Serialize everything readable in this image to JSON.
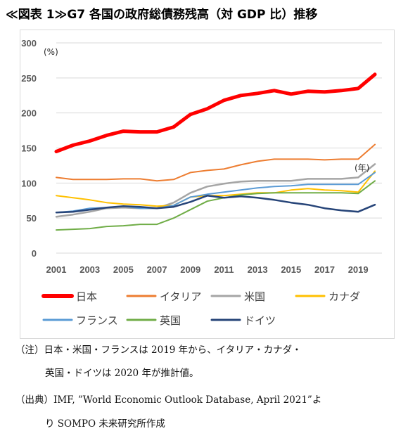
{
  "title": "≪図表 1≫G7 各国の政府総債務残高（対 GDP 比）推移",
  "chart_data": {
    "type": "line",
    "unit_label": "(%)",
    "x_unit_label": "(年)",
    "ylim": [
      0,
      300
    ],
    "yticks": [
      "0",
      "50",
      "100",
      "150",
      "200",
      "250",
      "300"
    ],
    "xtick_labels": [
      "2001",
      "2003",
      "2005",
      "2007",
      "2009",
      "2011",
      "2013",
      "2015",
      "2017",
      "2019"
    ],
    "x": [
      2001,
      2002,
      2003,
      2004,
      2005,
      2006,
      2007,
      2008,
      2009,
      2010,
      2011,
      2012,
      2013,
      2014,
      2015,
      2016,
      2017,
      2018,
      2019,
      2020
    ],
    "grid": true,
    "legend_position": "bottom",
    "series": [
      {
        "name": "日本",
        "color": "#ff0000",
        "width": 5,
        "values": [
          145,
          154,
          160,
          168,
          174,
          173,
          173,
          180,
          198,
          206,
          218,
          225,
          228,
          232,
          227,
          231,
          230,
          232,
          235,
          255
        ]
      },
      {
        "name": "イタリア",
        "color": "#ed7d31",
        "width": 2,
        "values": [
          108,
          105,
          105,
          105,
          106,
          106,
          103,
          105,
          115,
          118,
          120,
          126,
          131,
          134,
          134,
          134,
          133,
          134,
          134,
          155
        ]
      },
      {
        "name": "米国",
        "color": "#a5a5a5",
        "width": 2.5,
        "values": [
          52,
          55,
          59,
          64,
          65,
          64,
          64,
          72,
          86,
          95,
          99,
          102,
          103,
          103,
          103,
          106,
          106,
          106,
          108,
          127
        ]
      },
      {
        "name": "カナダ",
        "color": "#ffc000",
        "width": 2,
        "values": [
          82,
          79,
          76,
          72,
          70,
          69,
          67,
          68,
          80,
          82,
          82,
          84,
          86,
          86,
          90,
          92,
          90,
          89,
          87,
          117
        ]
      },
      {
        "name": "フランス",
        "color": "#5b9bd5",
        "width": 2,
        "values": [
          58,
          60,
          64,
          65,
          67,
          64,
          64,
          68,
          80,
          84,
          87,
          90,
          93,
          95,
          96,
          98,
          98,
          98,
          98,
          115
        ]
      },
      {
        "name": "英国",
        "color": "#70ad47",
        "width": 2,
        "values": [
          33,
          34,
          35,
          38,
          39,
          41,
          41,
          50,
          62,
          74,
          79,
          83,
          85,
          86,
          86,
          86,
          86,
          86,
          85,
          103
        ]
      },
      {
        "name": "ドイツ",
        "color": "#264478",
        "width": 2.5,
        "values": [
          58,
          59,
          62,
          65,
          67,
          66,
          64,
          66,
          73,
          82,
          79,
          81,
          79,
          76,
          72,
          69,
          64,
          61,
          59,
          69
        ]
      }
    ]
  },
  "notes": {
    "line1": "（注）日本・米国・フランスは 2019 年から、イタリア・カナダ・",
    "line2": "英国・ドイツは 2020 年が推計値。",
    "line3": "（出典）IMF, ”World Economic Outlook Database, April 2021”よ",
    "line4": "り SOMPO 未来研究所作成"
  }
}
